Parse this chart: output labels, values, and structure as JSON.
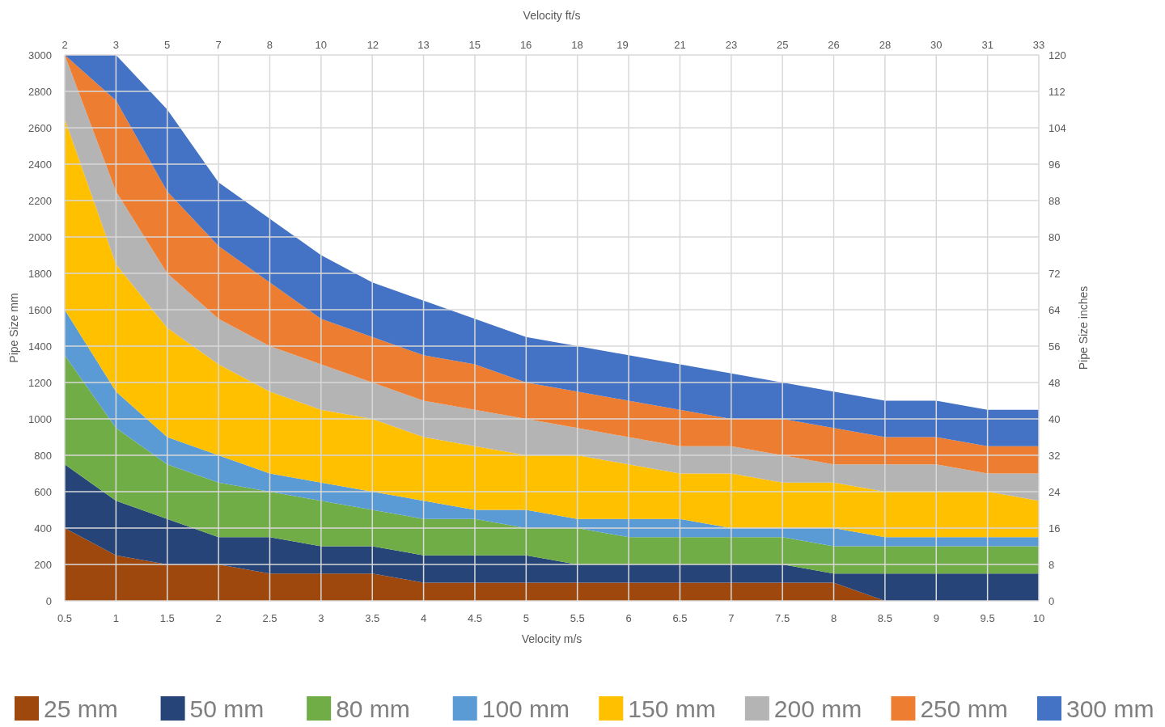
{
  "chart_data": {
    "type": "area",
    "stacked": true,
    "xlabel": "Velocity m/s",
    "x2label": "Velocity ft/s",
    "ylabel": "Pipe Size mm",
    "y2label": "Pipe Size inches",
    "x": [
      0.5,
      1,
      1.5,
      2,
      2.5,
      3,
      3.5,
      4,
      4.5,
      5,
      5.5,
      6,
      6.5,
      7,
      7.5,
      8,
      8.5,
      9,
      9.5,
      10
    ],
    "xlim": [
      0.5,
      10
    ],
    "xticks": [
      0.5,
      1,
      1.5,
      2,
      2.5,
      3,
      3.5,
      4,
      4.5,
      5,
      5.5,
      6,
      6.5,
      7,
      7.5,
      8,
      8.5,
      9,
      9.5,
      10
    ],
    "x2lim": [
      1.64,
      32.81
    ],
    "x2ticks": [
      {
        "value": 1.64,
        "label": "2"
      },
      {
        "value": 3.28,
        "label": "3"
      },
      {
        "value": 4.92,
        "label": "5"
      },
      {
        "value": 6.56,
        "label": "7"
      },
      {
        "value": 8.2,
        "label": "8"
      },
      {
        "value": 9.84,
        "label": "10"
      },
      {
        "value": 11.5,
        "label": "12"
      },
      {
        "value": 13.12,
        "label": "13"
      },
      {
        "value": 14.76,
        "label": "15"
      },
      {
        "value": 16.4,
        "label": "16"
      },
      {
        "value": 18.04,
        "label": "18"
      },
      {
        "value": 19.49,
        "label": "19"
      },
      {
        "value": 21.33,
        "label": "21"
      },
      {
        "value": 22.97,
        "label": "23"
      },
      {
        "value": 24.61,
        "label": "25"
      },
      {
        "value": 26.25,
        "label": "26"
      },
      {
        "value": 27.89,
        "label": "28"
      },
      {
        "value": 29.53,
        "label": "30"
      },
      {
        "value": 31.17,
        "label": "31"
      },
      {
        "value": 32.81,
        "label": "33"
      }
    ],
    "ylim": [
      0,
      3000
    ],
    "yticks": [
      0,
      200,
      400,
      600,
      800,
      1000,
      1200,
      1400,
      1600,
      1800,
      2000,
      2200,
      2400,
      2600,
      2800,
      3000
    ],
    "y2lim": [
      0,
      120
    ],
    "y2ticks": [
      0,
      8,
      16,
      24,
      32,
      40,
      48,
      56,
      64,
      72,
      80,
      88,
      96,
      104,
      112,
      120
    ],
    "grid": true,
    "legend": "bottom",
    "series": [
      {
        "name": "25 mm",
        "color": "#9e480e",
        "values": [
          400,
          250,
          200,
          200,
          150,
          150,
          150,
          100,
          100,
          100,
          100,
          100,
          100,
          100,
          100,
          100,
          0,
          0,
          0,
          0
        ]
      },
      {
        "name": "50 mm",
        "color": "#264478",
        "values": [
          350,
          300,
          250,
          150,
          200,
          150,
          150,
          150,
          150,
          150,
          100,
          100,
          100,
          100,
          100,
          50,
          150,
          150,
          150,
          150
        ]
      },
      {
        "name": "80 mm",
        "color": "#70ad47",
        "values": [
          600,
          400,
          300,
          300,
          250,
          250,
          200,
          200,
          200,
          150,
          200,
          150,
          150,
          150,
          150,
          150,
          150,
          150,
          150,
          150
        ]
      },
      {
        "name": "100 mm",
        "color": "#5b9bd5",
        "values": [
          250,
          200,
          150,
          150,
          100,
          100,
          100,
          100,
          50,
          100,
          50,
          100,
          100,
          50,
          50,
          100,
          50,
          50,
          50,
          50
        ]
      },
      {
        "name": "150 mm",
        "color": "#ffc000",
        "values": [
          1050,
          700,
          600,
          500,
          450,
          400,
          400,
          350,
          350,
          300,
          350,
          300,
          250,
          300,
          250,
          250,
          250,
          250,
          250,
          200
        ]
      },
      {
        "name": "200 mm",
        "color": "#b4b4b4",
        "values": [
          350,
          400,
          300,
          250,
          250,
          250,
          200,
          200,
          200,
          200,
          150,
          150,
          150,
          150,
          150,
          100,
          150,
          150,
          100,
          150
        ]
      },
      {
        "name": "250 mm",
        "color": "#ed7d31",
        "values": [
          0,
          500,
          450,
          400,
          350,
          250,
          250,
          250,
          250,
          200,
          200,
          200,
          200,
          150,
          200,
          200,
          150,
          150,
          150,
          150
        ]
      },
      {
        "name": "300 mm",
        "color": "#4472c4",
        "values": [
          0,
          250,
          450,
          350,
          350,
          350,
          300,
          300,
          250,
          250,
          250,
          250,
          250,
          250,
          200,
          200,
          200,
          200,
          200,
          200
        ]
      }
    ]
  }
}
